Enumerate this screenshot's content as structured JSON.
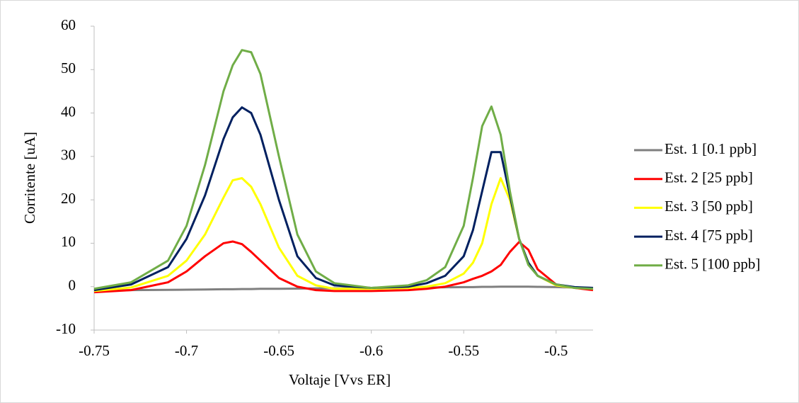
{
  "chart_data": {
    "type": "line",
    "x_label": "Voltaje [Vvs ER]",
    "y_label": "Corritente [uA]",
    "x": [
      -0.75,
      -0.73,
      -0.71,
      -0.7,
      -0.69,
      -0.68,
      -0.675,
      -0.67,
      -0.665,
      -0.66,
      -0.65,
      -0.64,
      -0.63,
      -0.62,
      -0.6,
      -0.58,
      -0.57,
      -0.56,
      -0.55,
      -0.545,
      -0.54,
      -0.535,
      -0.53,
      -0.525,
      -0.52,
      -0.515,
      -0.51,
      -0.5,
      -0.49,
      -0.48
    ],
    "series": [
      {
        "name": "Est. 1 [0.1 ppb]",
        "color": "#7f7f7f",
        "values": [
          -0.9,
          -0.8,
          -0.75,
          -0.7,
          -0.65,
          -0.6,
          -0.6,
          -0.55,
          -0.55,
          -0.5,
          -0.5,
          -0.45,
          -0.4,
          -0.4,
          -0.3,
          -0.2,
          -0.2,
          -0.15,
          -0.1,
          -0.1,
          -0.05,
          -0.05,
          0,
          0,
          0,
          0,
          -0.05,
          -0.1,
          -0.2,
          -0.3
        ]
      },
      {
        "name": "Est. 2 [25 ppb]",
        "color": "#ff0000",
        "values": [
          -1.3,
          -0.8,
          1,
          3.5,
          7,
          10,
          10.4,
          9.8,
          8,
          6,
          2,
          0,
          -0.8,
          -1,
          -1,
          -0.8,
          -0.5,
          0,
          1,
          1.8,
          2.5,
          3.5,
          5,
          8,
          10.3,
          8.5,
          4,
          0.5,
          -0.3,
          -0.8
        ]
      },
      {
        "name": "Est. 3 [50 ppb]",
        "color": "#ffff00",
        "values": [
          -1,
          -0.2,
          2.5,
          6,
          12,
          20.5,
          24.5,
          25,
          23,
          19,
          9,
          2.5,
          0.3,
          -0.5,
          -0.5,
          -0.3,
          0,
          0.8,
          3,
          5.5,
          10,
          19,
          25,
          20,
          11,
          5.5,
          2.5,
          0.3,
          -0.3,
          -0.5
        ]
      },
      {
        "name": "Est. 4 [75 ppb]",
        "color": "#002060",
        "values": [
          -0.8,
          0.5,
          4.5,
          11,
          21,
          34,
          39,
          41.3,
          40,
          35,
          20,
          7,
          2,
          0.3,
          -0.3,
          0,
          0.8,
          2.5,
          7,
          13,
          22,
          31,
          31,
          21,
          11,
          5.5,
          2.5,
          0.5,
          -0.1,
          -0.3
        ]
      },
      {
        "name": "Est. 5 [100 ppb]",
        "color": "#70ad47",
        "values": [
          -0.5,
          1,
          6,
          14,
          28,
          45,
          51,
          54.5,
          54,
          49,
          30,
          12,
          3.5,
          0.8,
          -0.3,
          0.3,
          1.5,
          4.5,
          14,
          25,
          37,
          41.5,
          35,
          22,
          11,
          5,
          2.5,
          0.5,
          -0.3,
          -0.5
        ]
      }
    ],
    "xlim": [
      -0.75,
      -0.48
    ],
    "xticks": [
      -0.75,
      -0.7,
      -0.65,
      -0.6,
      -0.55,
      -0.5
    ],
    "ylim": [
      -10,
      60
    ],
    "yticks": [
      -10,
      0,
      10,
      20,
      30,
      40,
      50,
      60
    ],
    "legend": "right"
  }
}
